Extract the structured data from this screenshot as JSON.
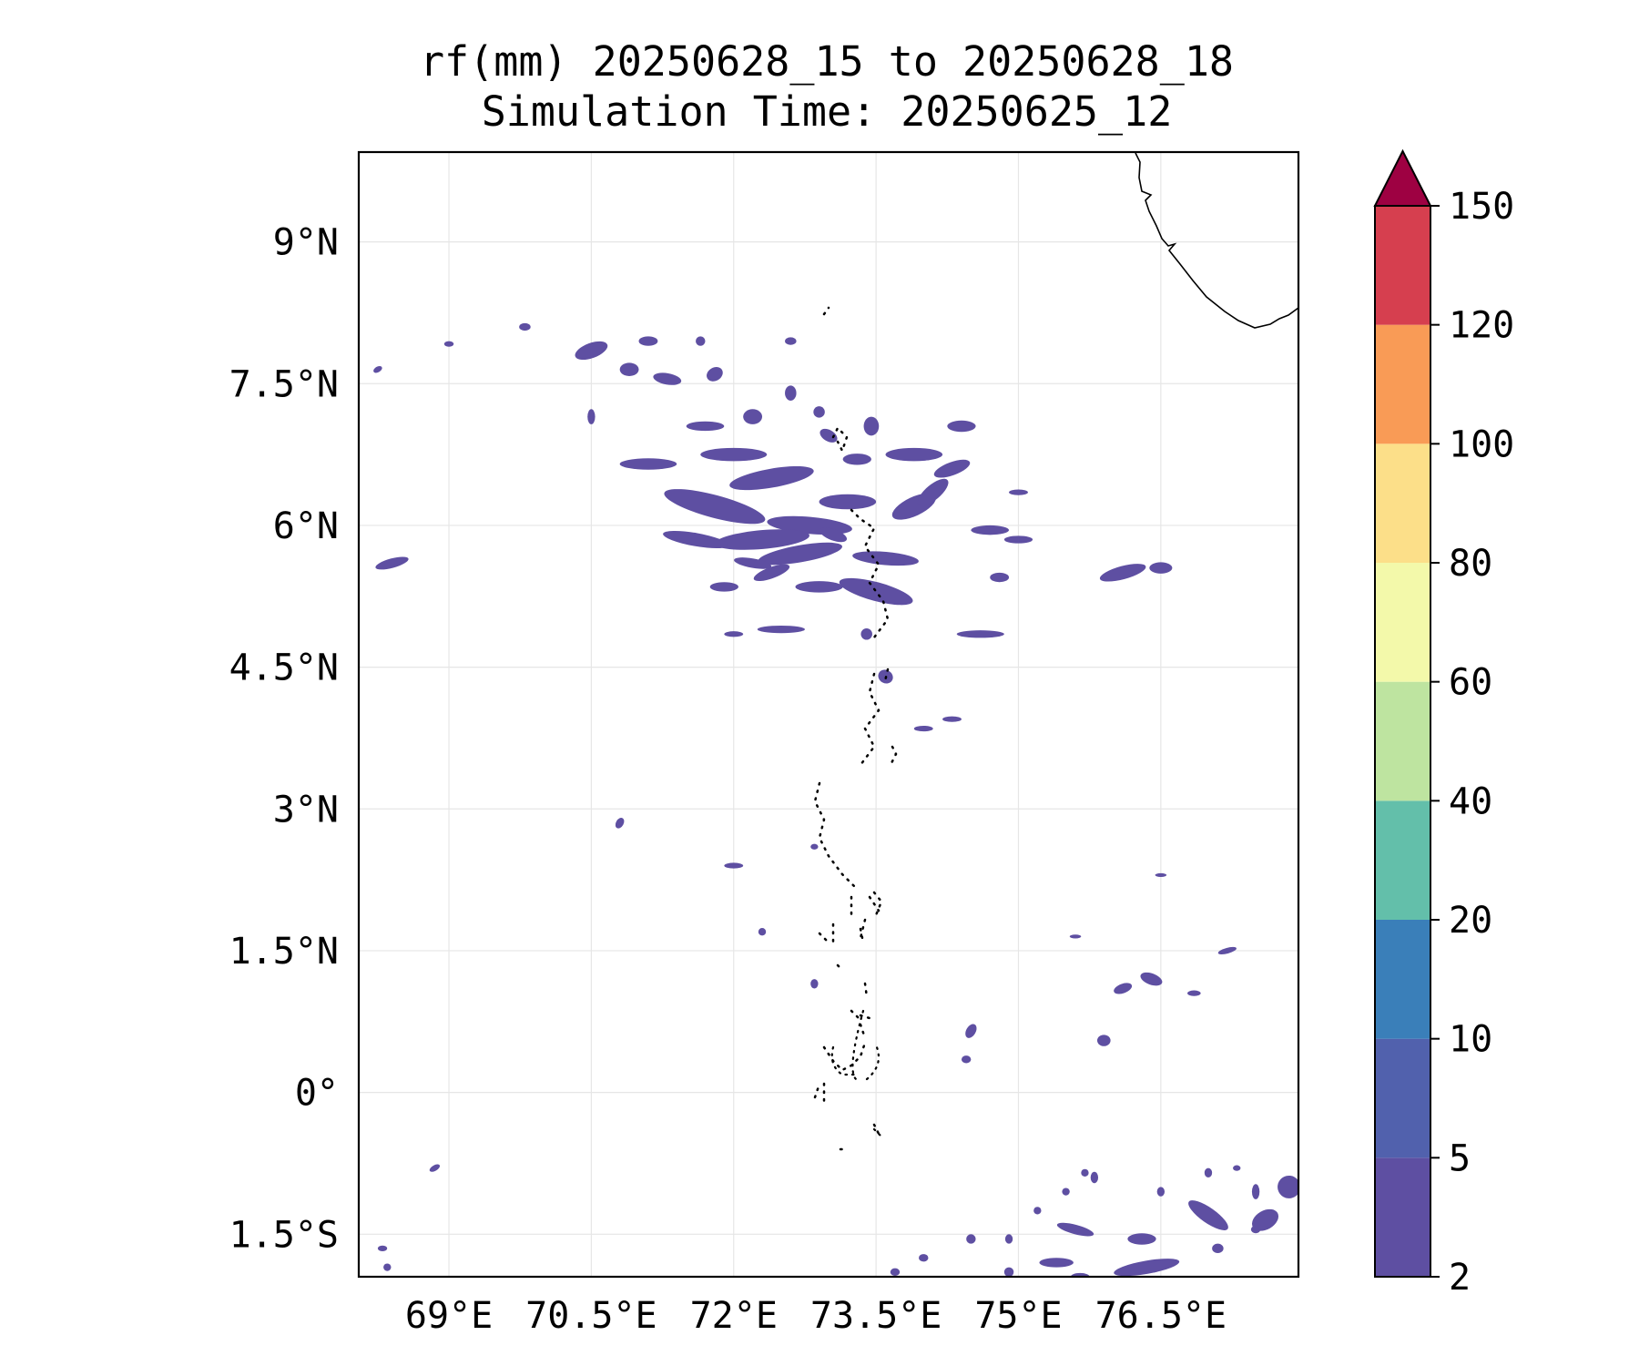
{
  "chart_data": {
    "type": "heatmap",
    "subtype": "filled-contour rainfall map",
    "title": "rf(mm) 20250628_15 to 20250628_18",
    "subtitle": "Simulation Time: 20250625_12",
    "xlabel": "",
    "ylabel": "",
    "x_ticks": [
      69,
      70.5,
      72,
      73.5,
      75,
      76.5
    ],
    "x_tick_labels": [
      "69°E",
      "70.5°E",
      "72°E",
      "73.5°E",
      "75°E",
      "76.5°E"
    ],
    "y_ticks": [
      9,
      7.5,
      6,
      4.5,
      3,
      1.5,
      0,
      -1.5
    ],
    "y_tick_labels": [
      "9°N",
      "7.5°N",
      "6°N",
      "4.5°N",
      "3°N",
      "1.5°N",
      "0°",
      "1.5°S"
    ],
    "xlim": [
      68.05,
      77.95
    ],
    "ylim": [
      -1.95,
      9.95
    ],
    "grid": true,
    "colorbar": {
      "levels": [
        2,
        5,
        10,
        20,
        40,
        60,
        80,
        100,
        120,
        150
      ],
      "tick_labels": [
        "2",
        "5",
        "10",
        "20",
        "40",
        "60",
        "80",
        "100",
        "120",
        "150"
      ],
      "colors": [
        "#5e4fa2",
        "#5161ad",
        "#3a7fb9",
        "#63bfaa",
        "#bee4a0",
        "#f3f9aa",
        "#fcdf89",
        "#f99b56",
        "#d63f4f",
        "#9e0142"
      ],
      "extend": "max"
    },
    "rain_cells": [
      [
        70.5,
        7.85,
        0.18,
        0.08,
        -20
      ],
      [
        70.9,
        7.65,
        0.1,
        0.07,
        0
      ],
      [
        71.1,
        7.95,
        0.1,
        0.05,
        0
      ],
      [
        71.3,
        7.55,
        0.15,
        0.06,
        10
      ],
      [
        71.8,
        7.6,
        0.07,
        0.09,
        60
      ],
      [
        71.65,
        7.95,
        0.05,
        0.05,
        0
      ],
      [
        70.5,
        7.15,
        0.04,
        0.08,
        0
      ],
      [
        69.0,
        7.92,
        0.05,
        0.03,
        0
      ],
      [
        68.25,
        7.65,
        0.05,
        0.03,
        -30
      ],
      [
        68.4,
        5.6,
        0.18,
        0.05,
        -15
      ],
      [
        69.8,
        8.1,
        0.06,
        0.04,
        0
      ],
      [
        72.6,
        7.95,
        0.06,
        0.04,
        0
      ],
      [
        71.8,
        6.2,
        0.55,
        0.12,
        15
      ],
      [
        72.4,
        6.5,
        0.45,
        0.1,
        -10
      ],
      [
        72.0,
        6.75,
        0.35,
        0.07,
        0
      ],
      [
        72.8,
        6.0,
        0.45,
        0.09,
        5
      ],
      [
        72.3,
        5.85,
        0.5,
        0.1,
        -5
      ],
      [
        71.6,
        5.85,
        0.35,
        0.07,
        10
      ],
      [
        72.7,
        5.7,
        0.45,
        0.09,
        -10
      ],
      [
        73.6,
        5.65,
        0.35,
        0.07,
        5
      ],
      [
        73.2,
        6.25,
        0.3,
        0.08,
        0
      ],
      [
        73.9,
        6.2,
        0.25,
        0.1,
        -25
      ],
      [
        74.1,
        6.35,
        0.2,
        0.08,
        -40
      ],
      [
        74.3,
        6.6,
        0.2,
        0.07,
        -20
      ],
      [
        73.9,
        6.75,
        0.3,
        0.07,
        0
      ],
      [
        74.4,
        7.05,
        0.15,
        0.06,
        0
      ],
      [
        73.5,
        5.3,
        0.4,
        0.1,
        15
      ],
      [
        72.9,
        5.35,
        0.25,
        0.06,
        0
      ],
      [
        72.4,
        5.5,
        0.2,
        0.06,
        -20
      ],
      [
        71.9,
        5.35,
        0.15,
        0.05,
        0
      ],
      [
        74.7,
        5.95,
        0.2,
        0.05,
        0
      ],
      [
        75.0,
        5.85,
        0.15,
        0.04,
        0
      ],
      [
        74.8,
        5.45,
        0.1,
        0.05,
        0
      ],
      [
        75.0,
        6.35,
        0.1,
        0.03,
        0
      ],
      [
        76.1,
        5.5,
        0.25,
        0.07,
        -15
      ],
      [
        76.5,
        5.55,
        0.12,
        0.06,
        0
      ],
      [
        72.5,
        4.9,
        0.25,
        0.04,
        0
      ],
      [
        74.6,
        4.85,
        0.25,
        0.04,
        0
      ],
      [
        72.0,
        4.85,
        0.1,
        0.03,
        0
      ],
      [
        73.6,
        4.4,
        0.08,
        0.07,
        30
      ],
      [
        73.4,
        4.85,
        0.06,
        0.06,
        0
      ],
      [
        74.0,
        3.85,
        0.1,
        0.03,
        0
      ],
      [
        73.05,
        5.9,
        0.15,
        0.06,
        20
      ],
      [
        73.45,
        7.05,
        0.08,
        0.1,
        0
      ],
      [
        73.0,
        6.95,
        0.1,
        0.06,
        30
      ],
      [
        72.9,
        7.2,
        0.06,
        0.06,
        0
      ],
      [
        73.3,
        6.7,
        0.15,
        0.06,
        0
      ],
      [
        72.6,
        7.4,
        0.06,
        0.08,
        0
      ],
      [
        71.1,
        6.65,
        0.3,
        0.06,
        0
      ],
      [
        71.7,
        7.05,
        0.2,
        0.05,
        0
      ],
      [
        72.2,
        7.15,
        0.1,
        0.08,
        0
      ],
      [
        72.0,
        2.4,
        0.1,
        0.03,
        0
      ],
      [
        72.3,
        1.7,
        0.04,
        0.04,
        0
      ],
      [
        72.85,
        1.15,
        0.04,
        0.05,
        0
      ],
      [
        70.8,
        2.85,
        0.04,
        0.06,
        30
      ],
      [
        74.5,
        0.65,
        0.05,
        0.08,
        30
      ],
      [
        74.45,
        0.35,
        0.05,
        0.04,
        0
      ],
      [
        76.4,
        1.2,
        0.12,
        0.06,
        20
      ],
      [
        76.1,
        1.1,
        0.1,
        0.05,
        -20
      ],
      [
        75.9,
        0.55,
        0.07,
        0.06,
        0
      ],
      [
        77.2,
        1.5,
        0.1,
        0.03,
        -15
      ],
      [
        76.5,
        2.3,
        0.06,
        0.02,
        0
      ],
      [
        75.6,
        1.65,
        0.06,
        0.02,
        0
      ],
      [
        76.85,
        1.05,
        0.07,
        0.03,
        0
      ],
      [
        74.3,
        3.95,
        0.1,
        0.03,
        0
      ],
      [
        72.85,
        2.6,
        0.04,
        0.03,
        0
      ],
      [
        77.0,
        -1.3,
        0.25,
        0.08,
        35
      ],
      [
        77.6,
        -1.35,
        0.15,
        0.1,
        -30
      ],
      [
        77.85,
        -1.0,
        0.12,
        0.12,
        30
      ],
      [
        76.3,
        -1.55,
        0.15,
        0.06,
        0
      ],
      [
        75.6,
        -1.45,
        0.2,
        0.05,
        15
      ],
      [
        75.4,
        -1.8,
        0.18,
        0.05,
        0
      ],
      [
        76.35,
        -1.85,
        0.35,
        0.07,
        -10
      ],
      [
        77.1,
        -1.65,
        0.06,
        0.05,
        0
      ],
      [
        77.5,
        -1.45,
        0.05,
        0.04,
        0
      ],
      [
        74.9,
        -1.55,
        0.04,
        0.05,
        0
      ],
      [
        74.5,
        -1.55,
        0.05,
        0.05,
        0
      ],
      [
        74.0,
        -1.75,
        0.05,
        0.04,
        0
      ],
      [
        75.2,
        -1.25,
        0.04,
        0.04,
        0
      ],
      [
        75.5,
        -1.05,
        0.04,
        0.04,
        0
      ],
      [
        75.8,
        -0.9,
        0.04,
        0.06,
        0
      ],
      [
        76.5,
        -1.05,
        0.04,
        0.05,
        0
      ],
      [
        77.0,
        -0.85,
        0.04,
        0.05,
        0
      ],
      [
        77.5,
        -1.05,
        0.04,
        0.08,
        0
      ],
      [
        77.3,
        -0.8,
        0.04,
        0.03,
        0
      ],
      [
        75.7,
        -0.85,
        0.04,
        0.04,
        0
      ],
      [
        73.7,
        -1.9,
        0.05,
        0.04,
        0
      ],
      [
        74.9,
        -1.9,
        0.05,
        0.05,
        0
      ],
      [
        68.85,
        -0.8,
        0.06,
        0.03,
        -30
      ],
      [
        68.3,
        -1.65,
        0.05,
        0.03,
        0
      ],
      [
        68.35,
        -1.85,
        0.04,
        0.04,
        0
      ],
      [
        75.65,
        -1.95,
        0.1,
        0.04,
        0
      ],
      [
        72.2,
        5.6,
        0.2,
        0.05,
        10
      ]
    ],
    "coastline_label": "",
    "colorbar_label": ""
  }
}
